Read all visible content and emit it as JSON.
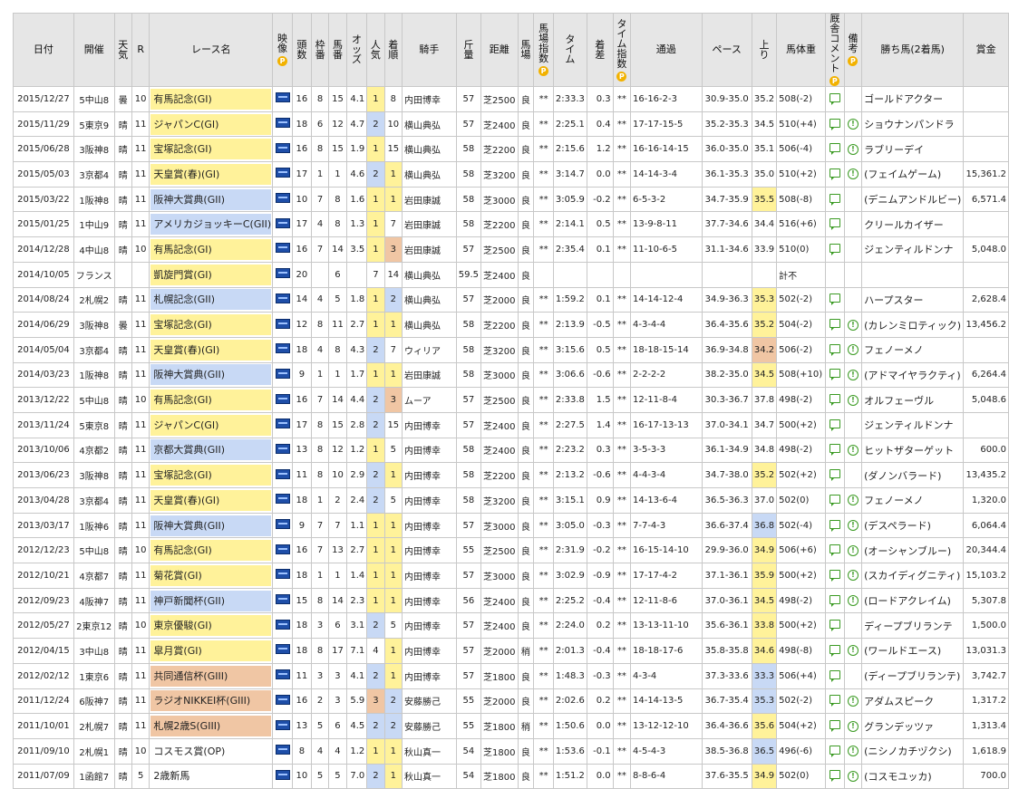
{
  "headers": {
    "date": "日付",
    "venue": "開催",
    "weather": "天気",
    "r": "R",
    "race_name": "レース名",
    "video": "映像",
    "heads": "頭数",
    "frame": "枠番",
    "horse_no": "馬番",
    "odds": "オッズ",
    "popularity": "人気",
    "finish": "着順",
    "jockey": "騎手",
    "weight_carried": "斤量",
    "distance": "距離",
    "track": "馬場",
    "track_index": "馬場指数",
    "time": "タイム",
    "margin": "着差",
    "time_index": "タイム指数",
    "passing": "通過",
    "pace": "ペース",
    "last3f": "上り",
    "body_weight": "馬体重",
    "comment": "厩舎コメント",
    "remarks": "備考",
    "winner": "勝ち馬(2着馬)",
    "prize": "賞金",
    "premium_badge": "P"
  },
  "rows": [
    {
      "date": "2015/12/27",
      "venue": "5中山8",
      "weather": "曇",
      "r": "10",
      "race": "有馬記念(GI)",
      "grade": "yellow",
      "heads": "16",
      "frame": "8",
      "num": "15",
      "odds": "4.1",
      "pop": "1",
      "finish": "8",
      "jockey": "内田博幸",
      "kg": "57",
      "dist": "芝2500",
      "track": "良",
      "tidx": "**",
      "time": "2:33.3",
      "margin": "0.3",
      "tmidx": "**",
      "pass": "16-16-2-3",
      "pace": "30.9-35.0",
      "last": "35.2",
      "lastrank": "",
      "bw": "508(-2)",
      "info": false,
      "winner": "ゴールドアクター",
      "prize": ""
    },
    {
      "date": "2015/11/29",
      "venue": "5東京9",
      "weather": "晴",
      "r": "11",
      "race": "ジャパンC(GI)",
      "grade": "yellow",
      "heads": "18",
      "frame": "6",
      "num": "12",
      "odds": "4.7",
      "pop": "2",
      "finish": "10",
      "jockey": "横山典弘",
      "kg": "57",
      "dist": "芝2400",
      "track": "良",
      "tidx": "**",
      "time": "2:25.1",
      "margin": "0.4",
      "tmidx": "**",
      "pass": "17-17-15-5",
      "pace": "35.2-35.3",
      "last": "34.5",
      "lastrank": "",
      "bw": "510(+4)",
      "info": true,
      "winner": "ショウナンパンドラ",
      "prize": ""
    },
    {
      "date": "2015/06/28",
      "venue": "3阪神8",
      "weather": "晴",
      "r": "11",
      "race": "宝塚記念(GI)",
      "grade": "yellow",
      "heads": "16",
      "frame": "8",
      "num": "15",
      "odds": "1.9",
      "pop": "1",
      "finish": "15",
      "jockey": "横山典弘",
      "kg": "58",
      "dist": "芝2200",
      "track": "良",
      "tidx": "**",
      "time": "2:15.6",
      "margin": "1.2",
      "tmidx": "**",
      "pass": "16-16-14-15",
      "pace": "36.0-35.0",
      "last": "35.1",
      "lastrank": "",
      "bw": "506(-4)",
      "info": true,
      "winner": "ラブリーデイ",
      "prize": ""
    },
    {
      "date": "2015/05/03",
      "venue": "3京都4",
      "weather": "晴",
      "r": "11",
      "race": "天皇賞(春)(GI)",
      "grade": "yellow",
      "heads": "17",
      "frame": "1",
      "num": "1",
      "odds": "4.6",
      "pop": "2",
      "finish": "1",
      "jockey": "横山典弘",
      "kg": "58",
      "dist": "芝3200",
      "track": "良",
      "tidx": "**",
      "time": "3:14.7",
      "margin": "0.0",
      "tmidx": "**",
      "pass": "14-14-3-4",
      "pace": "36.1-35.3",
      "last": "35.0",
      "lastrank": "",
      "bw": "510(+2)",
      "info": true,
      "winner": "(フェイムゲーム)",
      "prize": "15,361.2"
    },
    {
      "date": "2015/03/22",
      "venue": "1阪神8",
      "weather": "晴",
      "r": "11",
      "race": "阪神大賞典(GII)",
      "grade": "blue",
      "heads": "10",
      "frame": "7",
      "num": "8",
      "odds": "1.6",
      "pop": "1",
      "finish": "1",
      "jockey": "岩田康誠",
      "kg": "58",
      "dist": "芝3000",
      "track": "良",
      "tidx": "**",
      "time": "3:05.9",
      "margin": "-0.2",
      "tmidx": "**",
      "pass": "6-5-3-2",
      "pace": "34.7-35.9",
      "last": "35.5",
      "lastrank": "1",
      "bw": "508(-8)",
      "info": false,
      "winner": "(デニムアンドルビー)",
      "prize": "6,571.4"
    },
    {
      "date": "2015/01/25",
      "venue": "1中山9",
      "weather": "晴",
      "r": "11",
      "race": "アメリカジョッキーC(GII)",
      "grade": "blue",
      "heads": "17",
      "frame": "4",
      "num": "8",
      "odds": "1.3",
      "pop": "1",
      "finish": "7",
      "jockey": "岩田康誠",
      "kg": "58",
      "dist": "芝2200",
      "track": "良",
      "tidx": "**",
      "time": "2:14.1",
      "margin": "0.5",
      "tmidx": "**",
      "pass": "13-9-8-11",
      "pace": "37.7-34.6",
      "last": "34.4",
      "lastrank": "",
      "bw": "516(+6)",
      "info": false,
      "winner": "クリールカイザー",
      "prize": ""
    },
    {
      "date": "2014/12/28",
      "venue": "4中山8",
      "weather": "晴",
      "r": "10",
      "race": "有馬記念(GI)",
      "grade": "yellow",
      "heads": "16",
      "frame": "7",
      "num": "14",
      "odds": "3.5",
      "pop": "1",
      "finish": "3",
      "jockey": "岩田康誠",
      "kg": "57",
      "dist": "芝2500",
      "track": "良",
      "tidx": "**",
      "time": "2:35.4",
      "margin": "0.1",
      "tmidx": "**",
      "pass": "11-10-6-5",
      "pace": "31.1-34.6",
      "last": "33.9",
      "lastrank": "",
      "bw": "510(0)",
      "info": false,
      "winner": "ジェンティルドンナ",
      "prize": "5,048.0"
    },
    {
      "date": "2014/10/05",
      "venue": "フランス",
      "weather": "",
      "r": "",
      "race": "凱旋門賞(GI)",
      "grade": "yellow",
      "heads": "20",
      "frame": "",
      "num": "6",
      "odds": "",
      "pop": "7",
      "finish": "14",
      "jockey": "横山典弘",
      "kg": "59.5",
      "dist": "芝2400",
      "track": "良",
      "tidx": "",
      "time": "",
      "margin": "",
      "tmidx": "",
      "pass": "",
      "pace": "",
      "last": "",
      "lastrank": "",
      "bw": "計不",
      "info": false,
      "nocomment": true,
      "winner": "",
      "prize": ""
    },
    {
      "date": "2014/08/24",
      "venue": "2札幌2",
      "weather": "晴",
      "r": "11",
      "race": "札幌記念(GII)",
      "grade": "blue",
      "heads": "14",
      "frame": "4",
      "num": "5",
      "odds": "1.8",
      "pop": "1",
      "finish": "2",
      "jockey": "横山典弘",
      "kg": "57",
      "dist": "芝2000",
      "track": "良",
      "tidx": "**",
      "time": "1:59.2",
      "margin": "0.1",
      "tmidx": "**",
      "pass": "14-14-12-4",
      "pace": "34.9-36.3",
      "last": "35.3",
      "lastrank": "1",
      "bw": "502(-2)",
      "info": false,
      "winner": "ハープスター",
      "prize": "2,628.4"
    },
    {
      "date": "2014/06/29",
      "venue": "3阪神8",
      "weather": "曇",
      "r": "11",
      "race": "宝塚記念(GI)",
      "grade": "yellow",
      "heads": "12",
      "frame": "8",
      "num": "11",
      "odds": "2.7",
      "pop": "1",
      "finish": "1",
      "jockey": "横山典弘",
      "kg": "58",
      "dist": "芝2200",
      "track": "良",
      "tidx": "**",
      "time": "2:13.9",
      "margin": "-0.5",
      "tmidx": "**",
      "pass": "4-3-4-4",
      "pace": "36.4-35.6",
      "last": "35.2",
      "lastrank": "1",
      "bw": "504(-2)",
      "info": true,
      "winner": "(カレンミロティック)",
      "prize": "13,456.2"
    },
    {
      "date": "2014/05/04",
      "venue": "3京都4",
      "weather": "晴",
      "r": "11",
      "race": "天皇賞(春)(GI)",
      "grade": "yellow",
      "heads": "18",
      "frame": "4",
      "num": "8",
      "odds": "4.3",
      "pop": "2",
      "finish": "7",
      "jockey": "ウィリア",
      "kg": "58",
      "dist": "芝3200",
      "track": "良",
      "tidx": "**",
      "time": "3:15.6",
      "margin": "0.5",
      "tmidx": "**",
      "pass": "18-18-15-14",
      "pace": "36.9-34.8",
      "last": "34.2",
      "lastrank": "3",
      "bw": "506(-2)",
      "info": true,
      "winner": "フェノーメノ",
      "prize": ""
    },
    {
      "date": "2014/03/23",
      "venue": "1阪神8",
      "weather": "晴",
      "r": "11",
      "race": "阪神大賞典(GII)",
      "grade": "blue",
      "heads": "9",
      "frame": "1",
      "num": "1",
      "odds": "1.7",
      "pop": "1",
      "finish": "1",
      "jockey": "岩田康誠",
      "kg": "58",
      "dist": "芝3000",
      "track": "良",
      "tidx": "**",
      "time": "3:06.6",
      "margin": "-0.6",
      "tmidx": "**",
      "pass": "2-2-2-2",
      "pace": "38.2-35.0",
      "last": "34.5",
      "lastrank": "1",
      "bw": "508(+10)",
      "info": true,
      "winner": "(アドマイヤラクティ)",
      "prize": "6,264.4"
    },
    {
      "date": "2013/12/22",
      "venue": "5中山8",
      "weather": "晴",
      "r": "10",
      "race": "有馬記念(GI)",
      "grade": "yellow",
      "heads": "16",
      "frame": "7",
      "num": "14",
      "odds": "4.4",
      "pop": "2",
      "finish": "3",
      "jockey": "ムーア",
      "kg": "57",
      "dist": "芝2500",
      "track": "良",
      "tidx": "**",
      "time": "2:33.8",
      "margin": "1.5",
      "tmidx": "**",
      "pass": "12-11-8-4",
      "pace": "30.3-36.7",
      "last": "37.8",
      "lastrank": "",
      "bw": "498(-2)",
      "info": true,
      "winner": "オルフェーヴル",
      "prize": "5,048.6"
    },
    {
      "date": "2013/11/24",
      "venue": "5東京8",
      "weather": "晴",
      "r": "11",
      "race": "ジャパンC(GI)",
      "grade": "yellow",
      "heads": "17",
      "frame": "8",
      "num": "15",
      "odds": "2.8",
      "pop": "2",
      "finish": "15",
      "jockey": "内田博幸",
      "kg": "57",
      "dist": "芝2400",
      "track": "良",
      "tidx": "**",
      "time": "2:27.5",
      "margin": "1.4",
      "tmidx": "**",
      "pass": "16-17-13-13",
      "pace": "37.0-34.1",
      "last": "34.7",
      "lastrank": "",
      "bw": "500(+2)",
      "info": false,
      "winner": "ジェンティルドンナ",
      "prize": ""
    },
    {
      "date": "2013/10/06",
      "venue": "4京都2",
      "weather": "晴",
      "r": "11",
      "race": "京都大賞典(GII)",
      "grade": "blue",
      "heads": "13",
      "frame": "8",
      "num": "12",
      "odds": "1.2",
      "pop": "1",
      "finish": "5",
      "jockey": "内田博幸",
      "kg": "58",
      "dist": "芝2400",
      "track": "良",
      "tidx": "**",
      "time": "2:23.2",
      "margin": "0.3",
      "tmidx": "**",
      "pass": "3-5-3-3",
      "pace": "36.1-34.9",
      "last": "34.8",
      "lastrank": "",
      "bw": "498(-2)",
      "info": true,
      "winner": "ヒットザターゲット",
      "prize": "600.0"
    },
    {
      "date": "2013/06/23",
      "venue": "3阪神8",
      "weather": "晴",
      "r": "11",
      "race": "宝塚記念(GI)",
      "grade": "yellow",
      "heads": "11",
      "frame": "8",
      "num": "10",
      "odds": "2.9",
      "pop": "2",
      "finish": "1",
      "jockey": "内田博幸",
      "kg": "58",
      "dist": "芝2200",
      "track": "良",
      "tidx": "**",
      "time": "2:13.2",
      "margin": "-0.6",
      "tmidx": "**",
      "pass": "4-4-3-4",
      "pace": "34.7-38.0",
      "last": "35.2",
      "lastrank": "1",
      "bw": "502(+2)",
      "info": false,
      "winner": "(ダノンバラード)",
      "prize": "13,435.2"
    },
    {
      "date": "2013/04/28",
      "venue": "3京都4",
      "weather": "晴",
      "r": "11",
      "race": "天皇賞(春)(GI)",
      "grade": "yellow",
      "heads": "18",
      "frame": "1",
      "num": "2",
      "odds": "2.4",
      "pop": "2",
      "finish": "5",
      "jockey": "内田博幸",
      "kg": "58",
      "dist": "芝3200",
      "track": "良",
      "tidx": "**",
      "time": "3:15.1",
      "margin": "0.9",
      "tmidx": "**",
      "pass": "14-13-6-4",
      "pace": "36.5-36.3",
      "last": "37.0",
      "lastrank": "",
      "bw": "502(0)",
      "info": true,
      "winner": "フェノーメノ",
      "prize": "1,320.0"
    },
    {
      "date": "2013/03/17",
      "venue": "1阪神6",
      "weather": "晴",
      "r": "11",
      "race": "阪神大賞典(GII)",
      "grade": "blue",
      "heads": "9",
      "frame": "7",
      "num": "7",
      "odds": "1.1",
      "pop": "1",
      "finish": "1",
      "jockey": "内田博幸",
      "kg": "57",
      "dist": "芝3000",
      "track": "良",
      "tidx": "**",
      "time": "3:05.0",
      "margin": "-0.3",
      "tmidx": "**",
      "pass": "7-7-4-3",
      "pace": "36.6-37.4",
      "last": "36.8",
      "lastrank": "2",
      "bw": "502(-4)",
      "info": true,
      "winner": "(デスペラード)",
      "prize": "6,064.4"
    },
    {
      "date": "2012/12/23",
      "venue": "5中山8",
      "weather": "晴",
      "r": "10",
      "race": "有馬記念(GI)",
      "grade": "yellow",
      "heads": "16",
      "frame": "7",
      "num": "13",
      "odds": "2.7",
      "pop": "1",
      "finish": "1",
      "jockey": "内田博幸",
      "kg": "55",
      "dist": "芝2500",
      "track": "良",
      "tidx": "**",
      "time": "2:31.9",
      "margin": "-0.2",
      "tmidx": "**",
      "pass": "16-15-14-10",
      "pace": "29.9-36.0",
      "last": "34.9",
      "lastrank": "1",
      "bw": "506(+6)",
      "info": true,
      "winner": "(オーシャンブルー)",
      "prize": "20,344.4"
    },
    {
      "date": "2012/10/21",
      "venue": "4京都7",
      "weather": "晴",
      "r": "11",
      "race": "菊花賞(GI)",
      "grade": "yellow",
      "heads": "18",
      "frame": "1",
      "num": "1",
      "odds": "1.4",
      "pop": "1",
      "finish": "1",
      "jockey": "内田博幸",
      "kg": "57",
      "dist": "芝3000",
      "track": "良",
      "tidx": "**",
      "time": "3:02.9",
      "margin": "-0.9",
      "tmidx": "**",
      "pass": "17-17-4-2",
      "pace": "37.1-36.1",
      "last": "35.9",
      "lastrank": "1",
      "bw": "500(+2)",
      "info": true,
      "winner": "(スカイディグニティ)",
      "prize": "15,103.2"
    },
    {
      "date": "2012/09/23",
      "venue": "4阪神7",
      "weather": "晴",
      "r": "11",
      "race": "神戸新聞杯(GII)",
      "grade": "blue",
      "heads": "15",
      "frame": "8",
      "num": "14",
      "odds": "2.3",
      "pop": "1",
      "finish": "1",
      "jockey": "内田博幸",
      "kg": "56",
      "dist": "芝2400",
      "track": "良",
      "tidx": "**",
      "time": "2:25.2",
      "margin": "-0.4",
      "tmidx": "**",
      "pass": "12-11-8-6",
      "pace": "37.0-36.1",
      "last": "34.5",
      "lastrank": "1",
      "bw": "498(-2)",
      "info": true,
      "winner": "(ロードアクレイム)",
      "prize": "5,307.8"
    },
    {
      "date": "2012/05/27",
      "venue": "2東京12",
      "weather": "晴",
      "r": "10",
      "race": "東京優駿(GI)",
      "grade": "yellow",
      "heads": "18",
      "frame": "3",
      "num": "6",
      "odds": "3.1",
      "pop": "2",
      "finish": "5",
      "jockey": "内田博幸",
      "kg": "57",
      "dist": "芝2400",
      "track": "良",
      "tidx": "**",
      "time": "2:24.0",
      "margin": "0.2",
      "tmidx": "**",
      "pass": "13-13-11-10",
      "pace": "35.6-36.1",
      "last": "33.8",
      "lastrank": "1",
      "bw": "500(+2)",
      "info": false,
      "winner": "ディープブリランテ",
      "prize": "1,500.0"
    },
    {
      "date": "2012/04/15",
      "venue": "3中山8",
      "weather": "晴",
      "r": "11",
      "race": "皐月賞(GI)",
      "grade": "yellow",
      "heads": "18",
      "frame": "8",
      "num": "17",
      "odds": "7.1",
      "pop": "4",
      "finish": "1",
      "jockey": "内田博幸",
      "kg": "57",
      "dist": "芝2000",
      "track": "稍",
      "tidx": "**",
      "time": "2:01.3",
      "margin": "-0.4",
      "tmidx": "**",
      "pass": "18-18-17-6",
      "pace": "35.8-35.8",
      "last": "34.6",
      "lastrank": "1",
      "bw": "498(-8)",
      "info": true,
      "winner": "(ワールドエース)",
      "prize": "13,031.3"
    },
    {
      "date": "2012/02/12",
      "venue": "1東京6",
      "weather": "晴",
      "r": "11",
      "race": "共同通信杯(GIII)",
      "grade": "brown",
      "heads": "11",
      "frame": "3",
      "num": "3",
      "odds": "4.1",
      "pop": "2",
      "finish": "1",
      "jockey": "内田博幸",
      "kg": "57",
      "dist": "芝1800",
      "track": "良",
      "tidx": "**",
      "time": "1:48.3",
      "margin": "-0.3",
      "tmidx": "**",
      "pass": "4-3-4",
      "pace": "37.3-33.6",
      "last": "33.3",
      "lastrank": "2",
      "bw": "506(+4)",
      "info": false,
      "winner": "(ディープブリランテ)",
      "prize": "3,742.7"
    },
    {
      "date": "2011/12/24",
      "venue": "6阪神7",
      "weather": "晴",
      "r": "11",
      "race": "ラジオNIKKEI杯(GIII)",
      "grade": "brown",
      "heads": "16",
      "frame": "2",
      "num": "3",
      "odds": "5.9",
      "pop": "3",
      "finish": "2",
      "jockey": "安藤勝己",
      "kg": "55",
      "dist": "芝2000",
      "track": "良",
      "tidx": "**",
      "time": "2:02.6",
      "margin": "0.2",
      "tmidx": "**",
      "pass": "14-14-13-5",
      "pace": "36.7-35.4",
      "last": "35.3",
      "lastrank": "2",
      "bw": "502(-2)",
      "info": true,
      "winner": "アダムスピーク",
      "prize": "1,317.2"
    },
    {
      "date": "2011/10/01",
      "venue": "2札幌7",
      "weather": "晴",
      "r": "11",
      "race": "札幌2歳S(GIII)",
      "grade": "brown",
      "heads": "13",
      "frame": "5",
      "num": "6",
      "odds": "4.5",
      "pop": "2",
      "finish": "2",
      "jockey": "安藤勝己",
      "kg": "55",
      "dist": "芝1800",
      "track": "稍",
      "tidx": "**",
      "time": "1:50.6",
      "margin": "0.0",
      "tmidx": "**",
      "pass": "13-12-12-10",
      "pace": "36.4-36.6",
      "last": "35.6",
      "lastrank": "1",
      "bw": "504(+2)",
      "info": true,
      "winner": "グランデッツァ",
      "prize": "1,313.4"
    },
    {
      "date": "2011/09/10",
      "venue": "2札幌1",
      "weather": "晴",
      "r": "10",
      "race": "コスモス賞(OP)",
      "grade": "none",
      "heads": "8",
      "frame": "4",
      "num": "4",
      "odds": "1.2",
      "pop": "1",
      "finish": "1",
      "jockey": "秋山真一",
      "kg": "54",
      "dist": "芝1800",
      "track": "良",
      "tidx": "**",
      "time": "1:53.6",
      "margin": "-0.1",
      "tmidx": "**",
      "pass": "4-5-4-3",
      "pace": "38.5-36.8",
      "last": "36.5",
      "lastrank": "2",
      "bw": "496(-6)",
      "info": true,
      "winner": "(ニシノカチヅクシ)",
      "prize": "1,618.9"
    },
    {
      "date": "2011/07/09",
      "venue": "1函館7",
      "weather": "晴",
      "r": "5",
      "race": "2歳新馬",
      "grade": "none",
      "heads": "10",
      "frame": "5",
      "num": "5",
      "odds": "7.0",
      "pop": "2",
      "finish": "1",
      "jockey": "秋山真一",
      "kg": "54",
      "dist": "芝1800",
      "track": "良",
      "tidx": "**",
      "time": "1:51.2",
      "margin": "0.0",
      "tmidx": "**",
      "pass": "8-8-6-4",
      "pace": "37.6-35.5",
      "last": "34.9",
      "lastrank": "1",
      "bw": "502(0)",
      "info": true,
      "winner": "(コスモユッカ)",
      "prize": "700.0"
    }
  ]
}
